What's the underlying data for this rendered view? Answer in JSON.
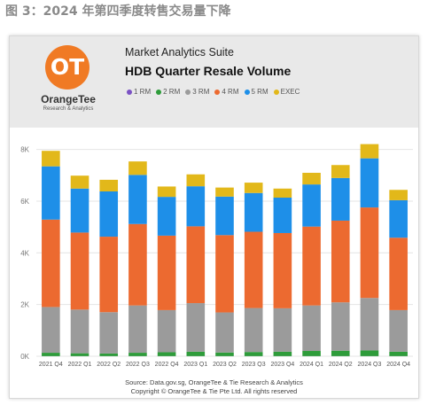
{
  "figure": {
    "title": "图 3：2024 年第四季度转售交易量下降"
  },
  "header": {
    "logo_mark": "OT",
    "logo_name": "OrangeTee",
    "logo_sub": "Research & Analytics",
    "suite": "Market Analytics Suite",
    "title": "HDB Quarter Resale Volume"
  },
  "footer": {
    "source": "Source: Data.gov.sg, OrangeTee & Tie Research & Analytics",
    "copyright": "Copyright © OrangeTee & Tie Pte Ltd. All rights reserved"
  },
  "colors": {
    "1 RM": "#7b52c4",
    "2 RM": "#2e9c3a",
    "3 RM": "#9b9b9b",
    "4 RM": "#ec6a30",
    "5 RM": "#1e8fe8",
    "EXEC": "#e2b81a"
  },
  "chart_data": {
    "type": "bar",
    "stacked": true,
    "categories": [
      "2021 Q4",
      "2022 Q1",
      "2022 Q2",
      "2022 Q3",
      "2022 Q4",
      "2023 Q1",
      "2023 Q2",
      "2023 Q3",
      "2023 Q4",
      "2024 Q1",
      "2024 Q2",
      "2024 Q3",
      "2024 Q4"
    ],
    "series": [
      {
        "name": "1 RM",
        "values": [
          5,
          5,
          5,
          5,
          5,
          5,
          5,
          5,
          5,
          5,
          5,
          5,
          5
        ]
      },
      {
        "name": "2 RM",
        "values": [
          130,
          110,
          100,
          130,
          150,
          170,
          140,
          160,
          170,
          200,
          210,
          220,
          170
        ]
      },
      {
        "name": "3 RM",
        "values": [
          1770,
          1690,
          1600,
          1830,
          1630,
          1880,
          1550,
          1700,
          1680,
          1760,
          1870,
          2030,
          1610
        ]
      },
      {
        "name": "4 RM",
        "values": [
          3380,
          2980,
          2920,
          3150,
          2880,
          2970,
          2990,
          2950,
          2910,
          3050,
          3160,
          3500,
          2800
        ]
      },
      {
        "name": "5 RM",
        "values": [
          2060,
          1700,
          1750,
          1900,
          1500,
          1550,
          1490,
          1500,
          1370,
          1630,
          1650,
          1900,
          1450
        ]
      },
      {
        "name": "EXEC",
        "values": [
          600,
          500,
          450,
          520,
          400,
          460,
          350,
          400,
          350,
          450,
          500,
          550,
          400
        ]
      }
    ],
    "ylim": [
      0,
      8500
    ],
    "yticks": [
      0,
      2000,
      4000,
      6000,
      8000
    ],
    "ytick_labels": [
      "0K",
      "2K",
      "4K",
      "6K",
      "8K"
    ],
    "grid": true,
    "legend_position": "top"
  }
}
